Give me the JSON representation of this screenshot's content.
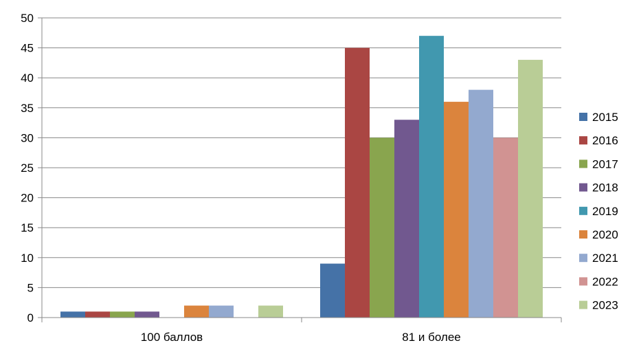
{
  "chart_data": {
    "type": "bar",
    "categories": [
      "100 баллов",
      "81 и более"
    ],
    "ylim": [
      0,
      50
    ],
    "yticks": [
      0,
      5,
      10,
      15,
      20,
      25,
      30,
      35,
      40,
      45,
      50
    ],
    "grid": true,
    "legend_position": "right",
    "series": [
      {
        "name": "2015",
        "color": "#4572A7",
        "values": [
          1,
          9
        ]
      },
      {
        "name": "2016",
        "color": "#AA4643",
        "values": [
          1,
          45
        ]
      },
      {
        "name": "2017",
        "color": "#89A54E",
        "values": [
          1,
          30
        ]
      },
      {
        "name": "2018",
        "color": "#71588F",
        "values": [
          1,
          33
        ]
      },
      {
        "name": "2019",
        "color": "#4198AF",
        "values": [
          0,
          47
        ]
      },
      {
        "name": "2020",
        "color": "#DB843D",
        "values": [
          2,
          36
        ]
      },
      {
        "name": "2021",
        "color": "#93A9CF",
        "values": [
          2,
          38
        ]
      },
      {
        "name": "2022",
        "color": "#D19392",
        "values": [
          0,
          30
        ]
      },
      {
        "name": "2023",
        "color": "#B9CD96",
        "values": [
          2,
          43
        ]
      }
    ]
  }
}
